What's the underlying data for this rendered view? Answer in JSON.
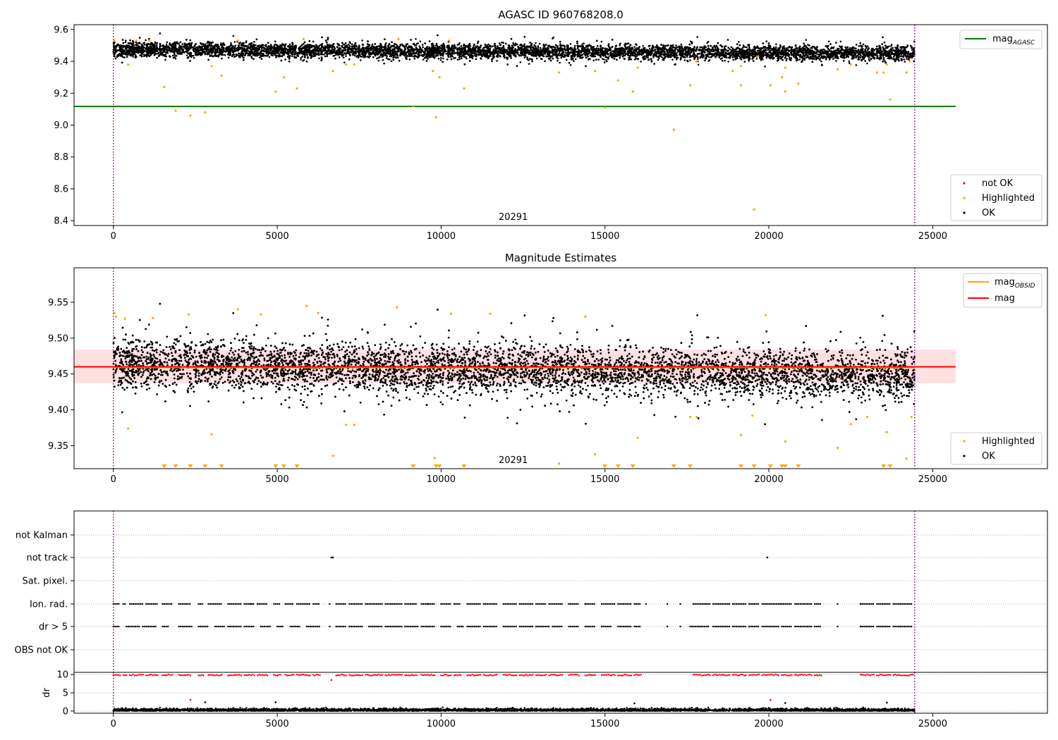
{
  "chart_data": [
    {
      "type": "scatter",
      "title": "AGASC ID 960768208.0",
      "xlim": [
        -1200,
        28500
      ],
      "ylim": [
        8.37,
        9.63
      ],
      "x_ticks": [
        0,
        5000,
        10000,
        15000,
        20000,
        25000
      ],
      "y_ticks": [
        8.4,
        8.6,
        8.8,
        9.0,
        9.2,
        9.4,
        9.6
      ],
      "x_tick_labels": [
        "0",
        "5000",
        "10000",
        "15000",
        "20000",
        "25000"
      ],
      "y_tick_labels": [
        "8.4",
        "8.6",
        "8.8",
        "9.0",
        "9.2",
        "9.4",
        "9.6"
      ],
      "obsid_label": "20291",
      "obsid_label_x": 12200,
      "obs_boundaries": [
        0,
        24450
      ],
      "mag_agasc": 9.117,
      "mag_agasc_x_range": [
        -1200,
        25700
      ],
      "ok_band": {
        "x_range": [
          0,
          24450
        ],
        "center_start": 9.475,
        "center_end": 9.45,
        "spread": 0.03
      },
      "highlighted_points": [
        {
          "x": 30,
          "y": 9.53
        },
        {
          "x": 450,
          "y": 9.38
        },
        {
          "x": 700,
          "y": 9.53
        },
        {
          "x": 1100,
          "y": 9.53
        },
        {
          "x": 1550,
          "y": 9.24
        },
        {
          "x": 1900,
          "y": 9.09
        },
        {
          "x": 2350,
          "y": 9.06
        },
        {
          "x": 2800,
          "y": 9.08
        },
        {
          "x": 3000,
          "y": 9.37
        },
        {
          "x": 3300,
          "y": 9.31
        },
        {
          "x": 3800,
          "y": 9.53
        },
        {
          "x": 4950,
          "y": 9.21
        },
        {
          "x": 5200,
          "y": 9.3
        },
        {
          "x": 5600,
          "y": 9.23
        },
        {
          "x": 5800,
          "y": 9.54
        },
        {
          "x": 6700,
          "y": 9.34
        },
        {
          "x": 7100,
          "y": 9.38
        },
        {
          "x": 7350,
          "y": 9.38
        },
        {
          "x": 8700,
          "y": 9.54
        },
        {
          "x": 9150,
          "y": 9.12
        },
        {
          "x": 9750,
          "y": 9.34
        },
        {
          "x": 9850,
          "y": 9.05
        },
        {
          "x": 9950,
          "y": 9.3
        },
        {
          "x": 10250,
          "y": 9.53
        },
        {
          "x": 10700,
          "y": 9.23
        },
        {
          "x": 13600,
          "y": 9.33
        },
        {
          "x": 14700,
          "y": 9.34
        },
        {
          "x": 15000,
          "y": 9.11
        },
        {
          "x": 15400,
          "y": 9.28
        },
        {
          "x": 15850,
          "y": 9.21
        },
        {
          "x": 16000,
          "y": 9.36
        },
        {
          "x": 17100,
          "y": 8.97
        },
        {
          "x": 17600,
          "y": 9.25
        },
        {
          "x": 17800,
          "y": 9.4
        },
        {
          "x": 18900,
          "y": 9.34
        },
        {
          "x": 19150,
          "y": 9.25
        },
        {
          "x": 19150,
          "y": 9.37
        },
        {
          "x": 19550,
          "y": 8.47
        },
        {
          "x": 19650,
          "y": 9.43
        },
        {
          "x": 20050,
          "y": 9.25
        },
        {
          "x": 20400,
          "y": 9.3
        },
        {
          "x": 20500,
          "y": 9.21
        },
        {
          "x": 20500,
          "y": 9.36
        },
        {
          "x": 20900,
          "y": 9.26
        },
        {
          "x": 22100,
          "y": 9.35
        },
        {
          "x": 22500,
          "y": 9.38
        },
        {
          "x": 23300,
          "y": 9.33
        },
        {
          "x": 23500,
          "y": 9.33
        },
        {
          "x": 23600,
          "y": 9.38
        },
        {
          "x": 23700,
          "y": 9.16
        },
        {
          "x": 24200,
          "y": 9.33
        },
        {
          "x": 24300,
          "y": 9.4
        }
      ],
      "legend_lines": [
        {
          "label": "mag",
          "subscript": "AGASC",
          "color": "#008000"
        }
      ],
      "legend_markers": [
        {
          "label": "not OK",
          "color": "#ff0000"
        },
        {
          "label": "Highlighted",
          "color": "#ffa500"
        },
        {
          "label": "OK",
          "color": "#000000"
        }
      ],
      "legend_lines_position": "top-right",
      "legend_markers_position": "bottom-right"
    },
    {
      "type": "scatter",
      "title": "Magnitude Estimates",
      "xlim": [
        -1200,
        28500
      ],
      "ylim": [
        9.318,
        9.598
      ],
      "x_ticks": [
        0,
        5000,
        10000,
        15000,
        20000,
        25000
      ],
      "y_ticks": [
        9.35,
        9.4,
        9.45,
        9.5,
        9.55
      ],
      "x_tick_labels": [
        "0",
        "5000",
        "10000",
        "15000",
        "20000",
        "25000"
      ],
      "y_tick_labels": [
        "9.35",
        "9.40",
        "9.45",
        "9.50",
        "9.55"
      ],
      "obsid_label": "20291",
      "obsid_label_x": 12200,
      "obs_boundaries": [
        0,
        24450
      ],
      "mag": 9.46,
      "mag_std_band": [
        9.437,
        9.484
      ],
      "mag_x_range": [
        -1200,
        25700
      ],
      "mag_obsid": 9.459,
      "mag_obsid_x_range": [
        0,
        24450
      ],
      "ok_band": {
        "x_range": [
          0,
          24450
        ],
        "center_start": 9.465,
        "center_end": 9.448,
        "spread": 0.022
      },
      "highlighted_points": [
        {
          "x": 30,
          "y": 9.535
        },
        {
          "x": 80,
          "y": 9.53
        },
        {
          "x": 350,
          "y": 9.527
        },
        {
          "x": 450,
          "y": 9.374
        },
        {
          "x": 1200,
          "y": 9.528
        },
        {
          "x": 2300,
          "y": 9.533
        },
        {
          "x": 3000,
          "y": 9.366
        },
        {
          "x": 3800,
          "y": 9.54
        },
        {
          "x": 4500,
          "y": 9.533
        },
        {
          "x": 5900,
          "y": 9.545
        },
        {
          "x": 6250,
          "y": 9.535
        },
        {
          "x": 6700,
          "y": 9.336
        },
        {
          "x": 7100,
          "y": 9.379
        },
        {
          "x": 7350,
          "y": 9.379
        },
        {
          "x": 8650,
          "y": 9.543
        },
        {
          "x": 9800,
          "y": 9.333
        },
        {
          "x": 10300,
          "y": 9.534
        },
        {
          "x": 11500,
          "y": 9.534
        },
        {
          "x": 13600,
          "y": 9.325
        },
        {
          "x": 14400,
          "y": 9.53
        },
        {
          "x": 14700,
          "y": 9.338
        },
        {
          "x": 16000,
          "y": 9.361
        },
        {
          "x": 17600,
          "y": 9.39
        },
        {
          "x": 17800,
          "y": 9.39
        },
        {
          "x": 19150,
          "y": 9.365
        },
        {
          "x": 19500,
          "y": 9.392
        },
        {
          "x": 19900,
          "y": 9.532
        },
        {
          "x": 20500,
          "y": 9.356
        },
        {
          "x": 22100,
          "y": 9.347
        },
        {
          "x": 22500,
          "y": 9.38
        },
        {
          "x": 23000,
          "y": 9.39
        },
        {
          "x": 23600,
          "y": 9.369
        },
        {
          "x": 24200,
          "y": 9.332
        },
        {
          "x": 24350,
          "y": 9.39
        }
      ],
      "below_range_markers_x": [
        1550,
        1900,
        2350,
        2800,
        3300,
        4950,
        5200,
        5600,
        9150,
        9850,
        9950,
        10700,
        15000,
        15400,
        15850,
        17100,
        17600,
        19150,
        19550,
        20050,
        20400,
        20500,
        20900,
        23500,
        23700
      ],
      "legend_lines": [
        {
          "label": "mag",
          "subscript": "OBSID",
          "color": "#ffa500"
        },
        {
          "label": "mag",
          "subscript": "",
          "color": "#ff0000"
        }
      ],
      "legend_markers": [
        {
          "label": "Highlighted",
          "color": "#ffa500"
        },
        {
          "label": "OK",
          "color": "#000000"
        }
      ],
      "legend_lines_position": "top-right",
      "legend_markers_position": "bottom-right"
    },
    {
      "type": "scatter",
      "title": "",
      "xlim": [
        -1200,
        28500
      ],
      "flag_rows": [
        "not Kalman",
        "not track",
        "Sat. pixel.",
        "Ion. rad.",
        "dr > 5",
        "OBS not OK"
      ],
      "obs_boundaries": [
        0,
        24450
      ],
      "flag_points": {
        "not track": [
          6650,
          6700,
          19950
        ],
        "ion_rad_segments": [
          [
            0,
            200
          ],
          [
            300,
            400
          ],
          [
            500,
            900
          ],
          [
            1000,
            1350
          ],
          [
            1500,
            1800
          ],
          [
            2000,
            2350
          ],
          [
            2600,
            2750
          ],
          [
            2900,
            3300
          ],
          [
            3500,
            3900
          ],
          [
            4000,
            4300
          ],
          [
            4400,
            4700
          ],
          [
            4900,
            5100
          ],
          [
            5250,
            5500
          ],
          [
            5600,
            6000
          ],
          [
            6100,
            6300
          ],
          [
            6800,
            7100
          ],
          [
            7200,
            7600
          ],
          [
            7700,
            8200
          ],
          [
            8300,
            8800
          ],
          [
            8900,
            9250
          ],
          [
            9400,
            9800
          ],
          [
            10000,
            10300
          ],
          [
            10400,
            10600
          ],
          [
            10800,
            11200
          ],
          [
            11300,
            11700
          ],
          [
            11900,
            12300
          ],
          [
            12400,
            12800
          ],
          [
            12900,
            13200
          ],
          [
            13300,
            13700
          ],
          [
            13900,
            14200
          ],
          [
            14400,
            14700
          ],
          [
            14900,
            15300
          ],
          [
            15400,
            15800
          ],
          [
            15900,
            16100
          ],
          [
            17700,
            18200
          ],
          [
            18300,
            18800
          ],
          [
            18900,
            19300
          ],
          [
            19400,
            19700
          ],
          [
            19800,
            20300
          ],
          [
            20400,
            20700
          ],
          [
            20800,
            21300
          ],
          [
            21400,
            21600
          ],
          [
            22800,
            23200
          ],
          [
            23300,
            23700
          ],
          [
            23800,
            24400
          ]
        ],
        "ion_rad_singles": [
          4200,
          6600,
          9600,
          13900,
          14400,
          16250,
          16900,
          17300,
          20350,
          22100,
          22800
        ],
        "dr5_segments": [
          [
            0,
            200
          ],
          [
            400,
            800
          ],
          [
            900,
            1300
          ],
          [
            1500,
            1700
          ],
          [
            2000,
            2400
          ],
          [
            2600,
            2900
          ],
          [
            3100,
            3400
          ],
          [
            3500,
            3900
          ],
          [
            4000,
            4300
          ],
          [
            4500,
            4800
          ],
          [
            5000,
            5200
          ],
          [
            5400,
            5700
          ],
          [
            5900,
            6300
          ],
          [
            6800,
            7100
          ],
          [
            7200,
            7600
          ],
          [
            7800,
            8200
          ],
          [
            8300,
            8800
          ],
          [
            8900,
            9300
          ],
          [
            9400,
            9800
          ],
          [
            10000,
            10300
          ],
          [
            10500,
            10700
          ],
          [
            10800,
            11200
          ],
          [
            11300,
            11700
          ],
          [
            11900,
            12300
          ],
          [
            12400,
            12800
          ],
          [
            12900,
            13300
          ],
          [
            13400,
            13700
          ],
          [
            13900,
            14200
          ],
          [
            14400,
            14700
          ],
          [
            14900,
            15200
          ],
          [
            15400,
            15800
          ],
          [
            15900,
            16100
          ],
          [
            17600,
            18200
          ],
          [
            18300,
            18800
          ],
          [
            18900,
            19300
          ],
          [
            19400,
            19700
          ],
          [
            19800,
            20300
          ],
          [
            20400,
            20700
          ],
          [
            20800,
            21300
          ],
          [
            21400,
            21600
          ],
          [
            22800,
            23200
          ],
          [
            23300,
            23700
          ],
          [
            23800,
            24400
          ]
        ],
        "dr5_singles": [
          6600,
          16900,
          17300,
          22100,
          22800
        ]
      }
    },
    {
      "type": "scatter",
      "title": "",
      "xlim": [
        -1200,
        28500
      ],
      "ylim": [
        -0.6,
        10.6
      ],
      "ylabel": "dr",
      "x_ticks": [
        0,
        5000,
        10000,
        15000,
        20000,
        25000
      ],
      "y_ticks": [
        0,
        5,
        10
      ],
      "x_tick_labels": [
        "0",
        "5000",
        "10000",
        "15000",
        "20000",
        "25000"
      ],
      "y_tick_labels": [
        "0",
        "5",
        "10"
      ],
      "obs_boundaries": [
        0,
        24450
      ],
      "clipped_value": 10,
      "outliers_red": [
        {
          "x": 2350,
          "y": 3.1
        },
        {
          "x": 6650,
          "y": 8.5
        },
        {
          "x": 20050,
          "y": 3.0
        }
      ],
      "outliers_black": [
        {
          "x": 2800,
          "y": 2.4
        },
        {
          "x": 4950,
          "y": 2.4
        },
        {
          "x": 15900,
          "y": 2.1
        },
        {
          "x": 20500,
          "y": 2.2
        },
        {
          "x": 23600,
          "y": 2.3
        }
      ]
    }
  ],
  "colors": {
    "ok": "#000000",
    "highlighted": "#ffa500",
    "not_ok": "#ff0000",
    "agasc": "#008000",
    "mag": "#ff0000",
    "obsid": "#ffa500",
    "boundary": "#800080",
    "band_fill": "#ffcccc"
  }
}
